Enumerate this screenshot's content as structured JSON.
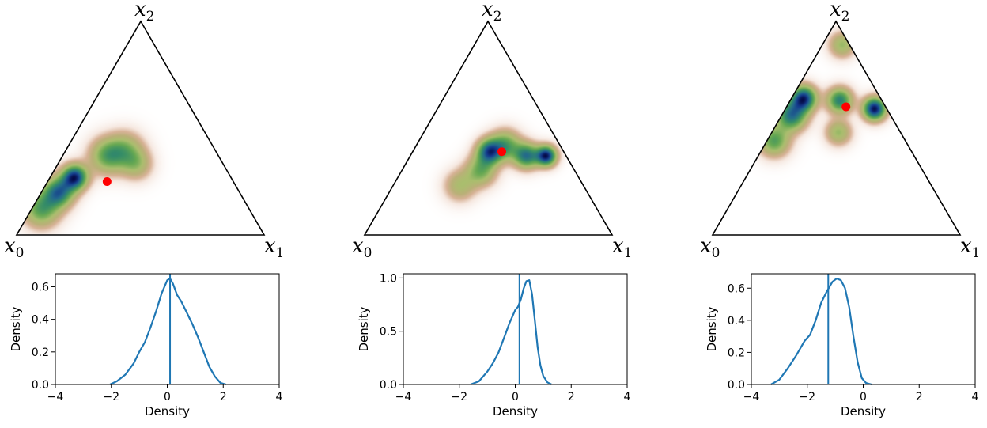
{
  "chart_data": [
    {
      "type": "heatmap",
      "vertex_labels": [
        {
          "base": "x",
          "sub": "0"
        },
        {
          "base": "x",
          "sub": "1"
        },
        {
          "base": "x",
          "sub": "2"
        }
      ],
      "point": {
        "x0": 0.51,
        "x1": 0.24,
        "x2": 0.25
      },
      "point_color": "#ff0000",
      "density_blobs": [
        {
          "x0": 0.63,
          "x1": 0.1,
          "x2": 0.27,
          "s": 0.05,
          "w": 1.0
        },
        {
          "x0": 0.73,
          "x1": 0.07,
          "x2": 0.2,
          "s": 0.06,
          "w": 0.8
        },
        {
          "x0": 0.84,
          "x1": 0.04,
          "x2": 0.12,
          "s": 0.07,
          "w": 0.6
        },
        {
          "x0": 0.45,
          "x1": 0.18,
          "x2": 0.37,
          "s": 0.07,
          "w": 0.55
        },
        {
          "x0": 0.36,
          "x1": 0.24,
          "x2": 0.4,
          "s": 0.07,
          "w": 0.4
        },
        {
          "x0": 0.35,
          "x1": 0.32,
          "x2": 0.33,
          "s": 0.06,
          "w": 0.35
        }
      ]
    },
    {
      "type": "heatmap",
      "vertex_labels": [
        {
          "base": "x",
          "sub": "0"
        },
        {
          "base": "x",
          "sub": "1"
        },
        {
          "base": "x",
          "sub": "2"
        }
      ],
      "point": {
        "x0": 0.25,
        "x1": 0.36,
        "x2": 0.39
      },
      "point_color": "#ff0000",
      "density_blobs": [
        {
          "x0": 0.08,
          "x1": 0.55,
          "x2": 0.37,
          "s": 0.04,
          "w": 1.0
        },
        {
          "x0": 0.16,
          "x1": 0.47,
          "x2": 0.37,
          "s": 0.05,
          "w": 0.75
        },
        {
          "x0": 0.3,
          "x1": 0.31,
          "x2": 0.39,
          "s": 0.05,
          "w": 0.8
        },
        {
          "x0": 0.22,
          "x1": 0.36,
          "x2": 0.42,
          "s": 0.06,
          "w": 0.55
        },
        {
          "x0": 0.38,
          "x1": 0.32,
          "x2": 0.3,
          "s": 0.06,
          "w": 0.5
        },
        {
          "x0": 0.5,
          "x1": 0.27,
          "x2": 0.23,
          "s": 0.06,
          "w": 0.35
        }
      ]
    },
    {
      "type": "heatmap",
      "vertex_labels": [
        {
          "base": "x",
          "sub": "0"
        },
        {
          "base": "x",
          "sub": "1"
        },
        {
          "base": "x",
          "sub": "2"
        }
      ],
      "point": {
        "x0": 0.16,
        "x1": 0.24,
        "x2": 0.6
      },
      "point_color": "#ff0000",
      "density_blobs": [
        {
          "x0": 0.05,
          "x1": 0.36,
          "x2": 0.59,
          "s": 0.045,
          "w": 1.0
        },
        {
          "x0": 0.31,
          "x1": 0.05,
          "x2": 0.64,
          "s": 0.05,
          "w": 0.9
        },
        {
          "x0": 0.4,
          "x1": 0.04,
          "x2": 0.56,
          "s": 0.06,
          "w": 0.75
        },
        {
          "x0": 0.17,
          "x1": 0.2,
          "x2": 0.63,
          "s": 0.05,
          "w": 0.7
        },
        {
          "x0": 0.53,
          "x1": 0.03,
          "x2": 0.44,
          "s": 0.06,
          "w": 0.55
        },
        {
          "x0": 0.03,
          "x1": 0.08,
          "x2": 0.89,
          "s": 0.05,
          "w": 0.4
        },
        {
          "x0": 0.25,
          "x1": 0.27,
          "x2": 0.48,
          "s": 0.05,
          "w": 0.4
        }
      ]
    },
    {
      "type": "line",
      "xlabel": "Density",
      "ylabel": "Density",
      "xlim": [
        -4,
        4
      ],
      "ylim": [
        0,
        0.68
      ],
      "xticks": [
        -4,
        -2,
        0,
        2,
        4
      ],
      "yticks": [
        0.0,
        0.2,
        0.4,
        0.6
      ],
      "ytick_labels": [
        "0.0",
        "0.2",
        "0.4",
        "0.6"
      ],
      "vline": 0.1,
      "color": "#1f77b4",
      "x": [
        -2.05,
        -1.8,
        -1.5,
        -1.2,
        -1.0,
        -0.8,
        -0.6,
        -0.4,
        -0.2,
        0.0,
        0.1,
        0.2,
        0.35,
        0.5,
        0.7,
        0.9,
        1.1,
        1.3,
        1.5,
        1.7,
        1.9,
        2.1
      ],
      "y": [
        0.0,
        0.02,
        0.06,
        0.13,
        0.2,
        0.26,
        0.35,
        0.45,
        0.56,
        0.64,
        0.65,
        0.62,
        0.55,
        0.51,
        0.44,
        0.37,
        0.29,
        0.2,
        0.11,
        0.05,
        0.01,
        0.0
      ]
    },
    {
      "type": "line",
      "xlabel": "Density",
      "ylabel": "Density",
      "xlim": [
        -4,
        4
      ],
      "ylim": [
        0,
        1.04
      ],
      "xticks": [
        -4,
        -2,
        0,
        2,
        4
      ],
      "yticks": [
        0.0,
        0.5,
        1.0
      ],
      "ytick_labels": [
        "0.0",
        "0.5",
        "1.0"
      ],
      "vline": 0.15,
      "color": "#1f77b4",
      "x": [
        -1.6,
        -1.3,
        -1.0,
        -0.8,
        -0.6,
        -0.4,
        -0.2,
        0.0,
        0.1,
        0.2,
        0.3,
        0.4,
        0.5,
        0.6,
        0.7,
        0.8,
        0.9,
        1.0,
        1.15,
        1.3
      ],
      "y": [
        0.0,
        0.03,
        0.12,
        0.2,
        0.3,
        0.44,
        0.58,
        0.7,
        0.73,
        0.8,
        0.9,
        0.97,
        0.98,
        0.85,
        0.6,
        0.35,
        0.18,
        0.08,
        0.02,
        0.0
      ]
    },
    {
      "type": "line",
      "xlabel": "Density",
      "ylabel": "Density",
      "xlim": [
        -4,
        4
      ],
      "ylim": [
        0,
        0.69
      ],
      "xticks": [
        -4,
        -2,
        0,
        2,
        4
      ],
      "yticks": [
        0.0,
        0.2,
        0.4,
        0.6
      ],
      "ytick_labels": [
        "0.0",
        "0.2",
        "0.4",
        "0.6"
      ],
      "vline": -1.25,
      "color": "#1f77b4",
      "x": [
        -3.3,
        -3.0,
        -2.7,
        -2.4,
        -2.1,
        -1.9,
        -1.7,
        -1.5,
        -1.3,
        -1.1,
        -0.95,
        -0.8,
        -0.65,
        -0.5,
        -0.35,
        -0.2,
        -0.05,
        0.1,
        0.3
      ],
      "y": [
        0.0,
        0.03,
        0.1,
        0.18,
        0.27,
        0.31,
        0.4,
        0.51,
        0.58,
        0.64,
        0.66,
        0.65,
        0.6,
        0.48,
        0.3,
        0.14,
        0.04,
        0.01,
        0.0
      ]
    }
  ]
}
